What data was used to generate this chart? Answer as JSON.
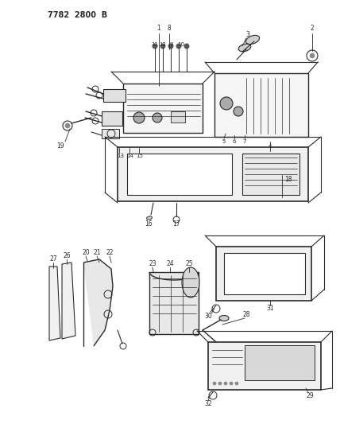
{
  "title": "7782  2800  B",
  "bg_color": "#ffffff",
  "line_color": "#2a2a2a",
  "text_color": "#2a2a2a",
  "figsize": [
    4.28,
    5.33
  ],
  "dpi": 100
}
